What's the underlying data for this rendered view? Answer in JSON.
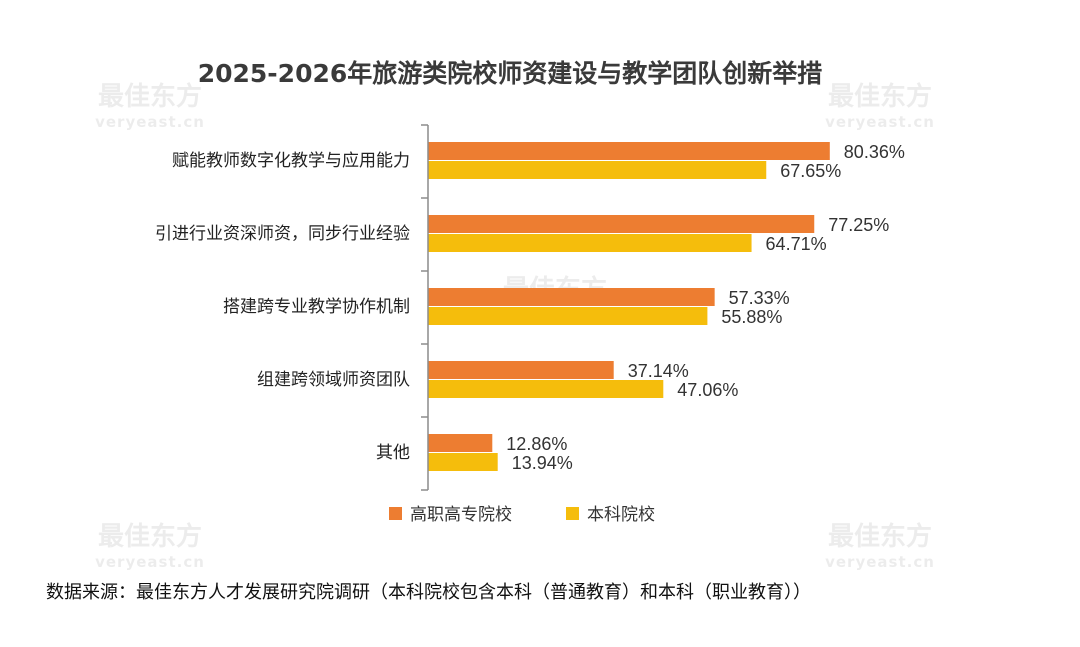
{
  "source_note": "数据来源：最佳东方人才发展研究院调研（本科院校包含本科（普通教育）和本科（职业教育））",
  "watermark": {
    "brand": "最佳东方",
    "site": "veryeast.cn"
  },
  "colors": {
    "series_1": "#ed7d31",
    "series_2": "#f5bd0c",
    "axis": "#8c8c8c"
  },
  "chart_data": {
    "type": "bar",
    "orientation": "horizontal",
    "title": "2025-2026年旅游类院校师资建设与教学团队创新举措",
    "categories": [
      "赋能教师数字化教学与应用能力",
      "引进行业资深师资，同步行业经验",
      "搭建跨专业教学协作机制",
      "组建跨领域师资团队",
      "其他"
    ],
    "series": [
      {
        "name": "高职高专院校",
        "values": [
          80.36,
          77.25,
          57.33,
          37.14,
          12.86
        ]
      },
      {
        "name": "本科院校",
        "values": [
          67.65,
          64.71,
          55.88,
          47.06,
          13.94
        ]
      }
    ],
    "value_labels": [
      [
        "80.36%",
        "77.25%",
        "57.33%",
        "37.14%",
        "12.86%"
      ],
      [
        "67.65%",
        "64.71%",
        "55.88%",
        "47.06%",
        "13.94%"
      ]
    ],
    "xlim": [
      0,
      100
    ],
    "unit": "%",
    "grid": false,
    "legend_position": "bottom"
  }
}
